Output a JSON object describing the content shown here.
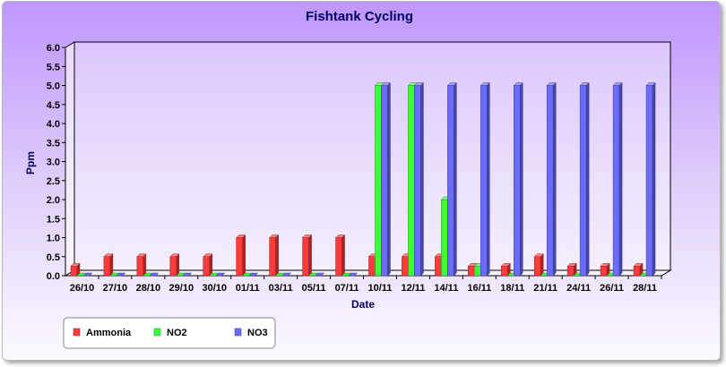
{
  "chart_data": {
    "type": "bar",
    "title": "Fishtank Cycling",
    "xlabel": "Date",
    "ylabel": "Ppm",
    "ylim": [
      0,
      6
    ],
    "y_ticks": [
      "0.0",
      "0.5",
      "1.0",
      "1.5",
      "2.0",
      "2.5",
      "3.0",
      "3.5",
      "4.0",
      "4.5",
      "5.0",
      "5.5",
      "6.0"
    ],
    "categories": [
      "26/10",
      "27/10",
      "28/10",
      "29/10",
      "30/10",
      "01/11",
      "03/11",
      "05/11",
      "07/11",
      "10/11",
      "12/11",
      "14/11",
      "16/11",
      "18/11",
      "21/11",
      "24/11",
      "26/11",
      "28/11"
    ],
    "series": [
      {
        "name": "Ammonia",
        "color": "#ff3b3b",
        "values": [
          0.25,
          0.5,
          0.5,
          0.5,
          0.5,
          1,
          1,
          1,
          1,
          0.5,
          0.5,
          0.5,
          0.25,
          0.25,
          0.5,
          0.25,
          0.25,
          0.25
        ]
      },
      {
        "name": "NO2",
        "color": "#3bff3b",
        "values": [
          0,
          0,
          0,
          0,
          0,
          0,
          0,
          0,
          0,
          5,
          5,
          2,
          0.25,
          0,
          0,
          0,
          0,
          0
        ]
      },
      {
        "name": "NO3",
        "color": "#6b6bff",
        "values": [
          0,
          0,
          0,
          0,
          0,
          0,
          0,
          0,
          0,
          5,
          5,
          5,
          5,
          5,
          5,
          5,
          5,
          5
        ]
      }
    ],
    "grid": false,
    "legend_position": "bottom-left"
  }
}
